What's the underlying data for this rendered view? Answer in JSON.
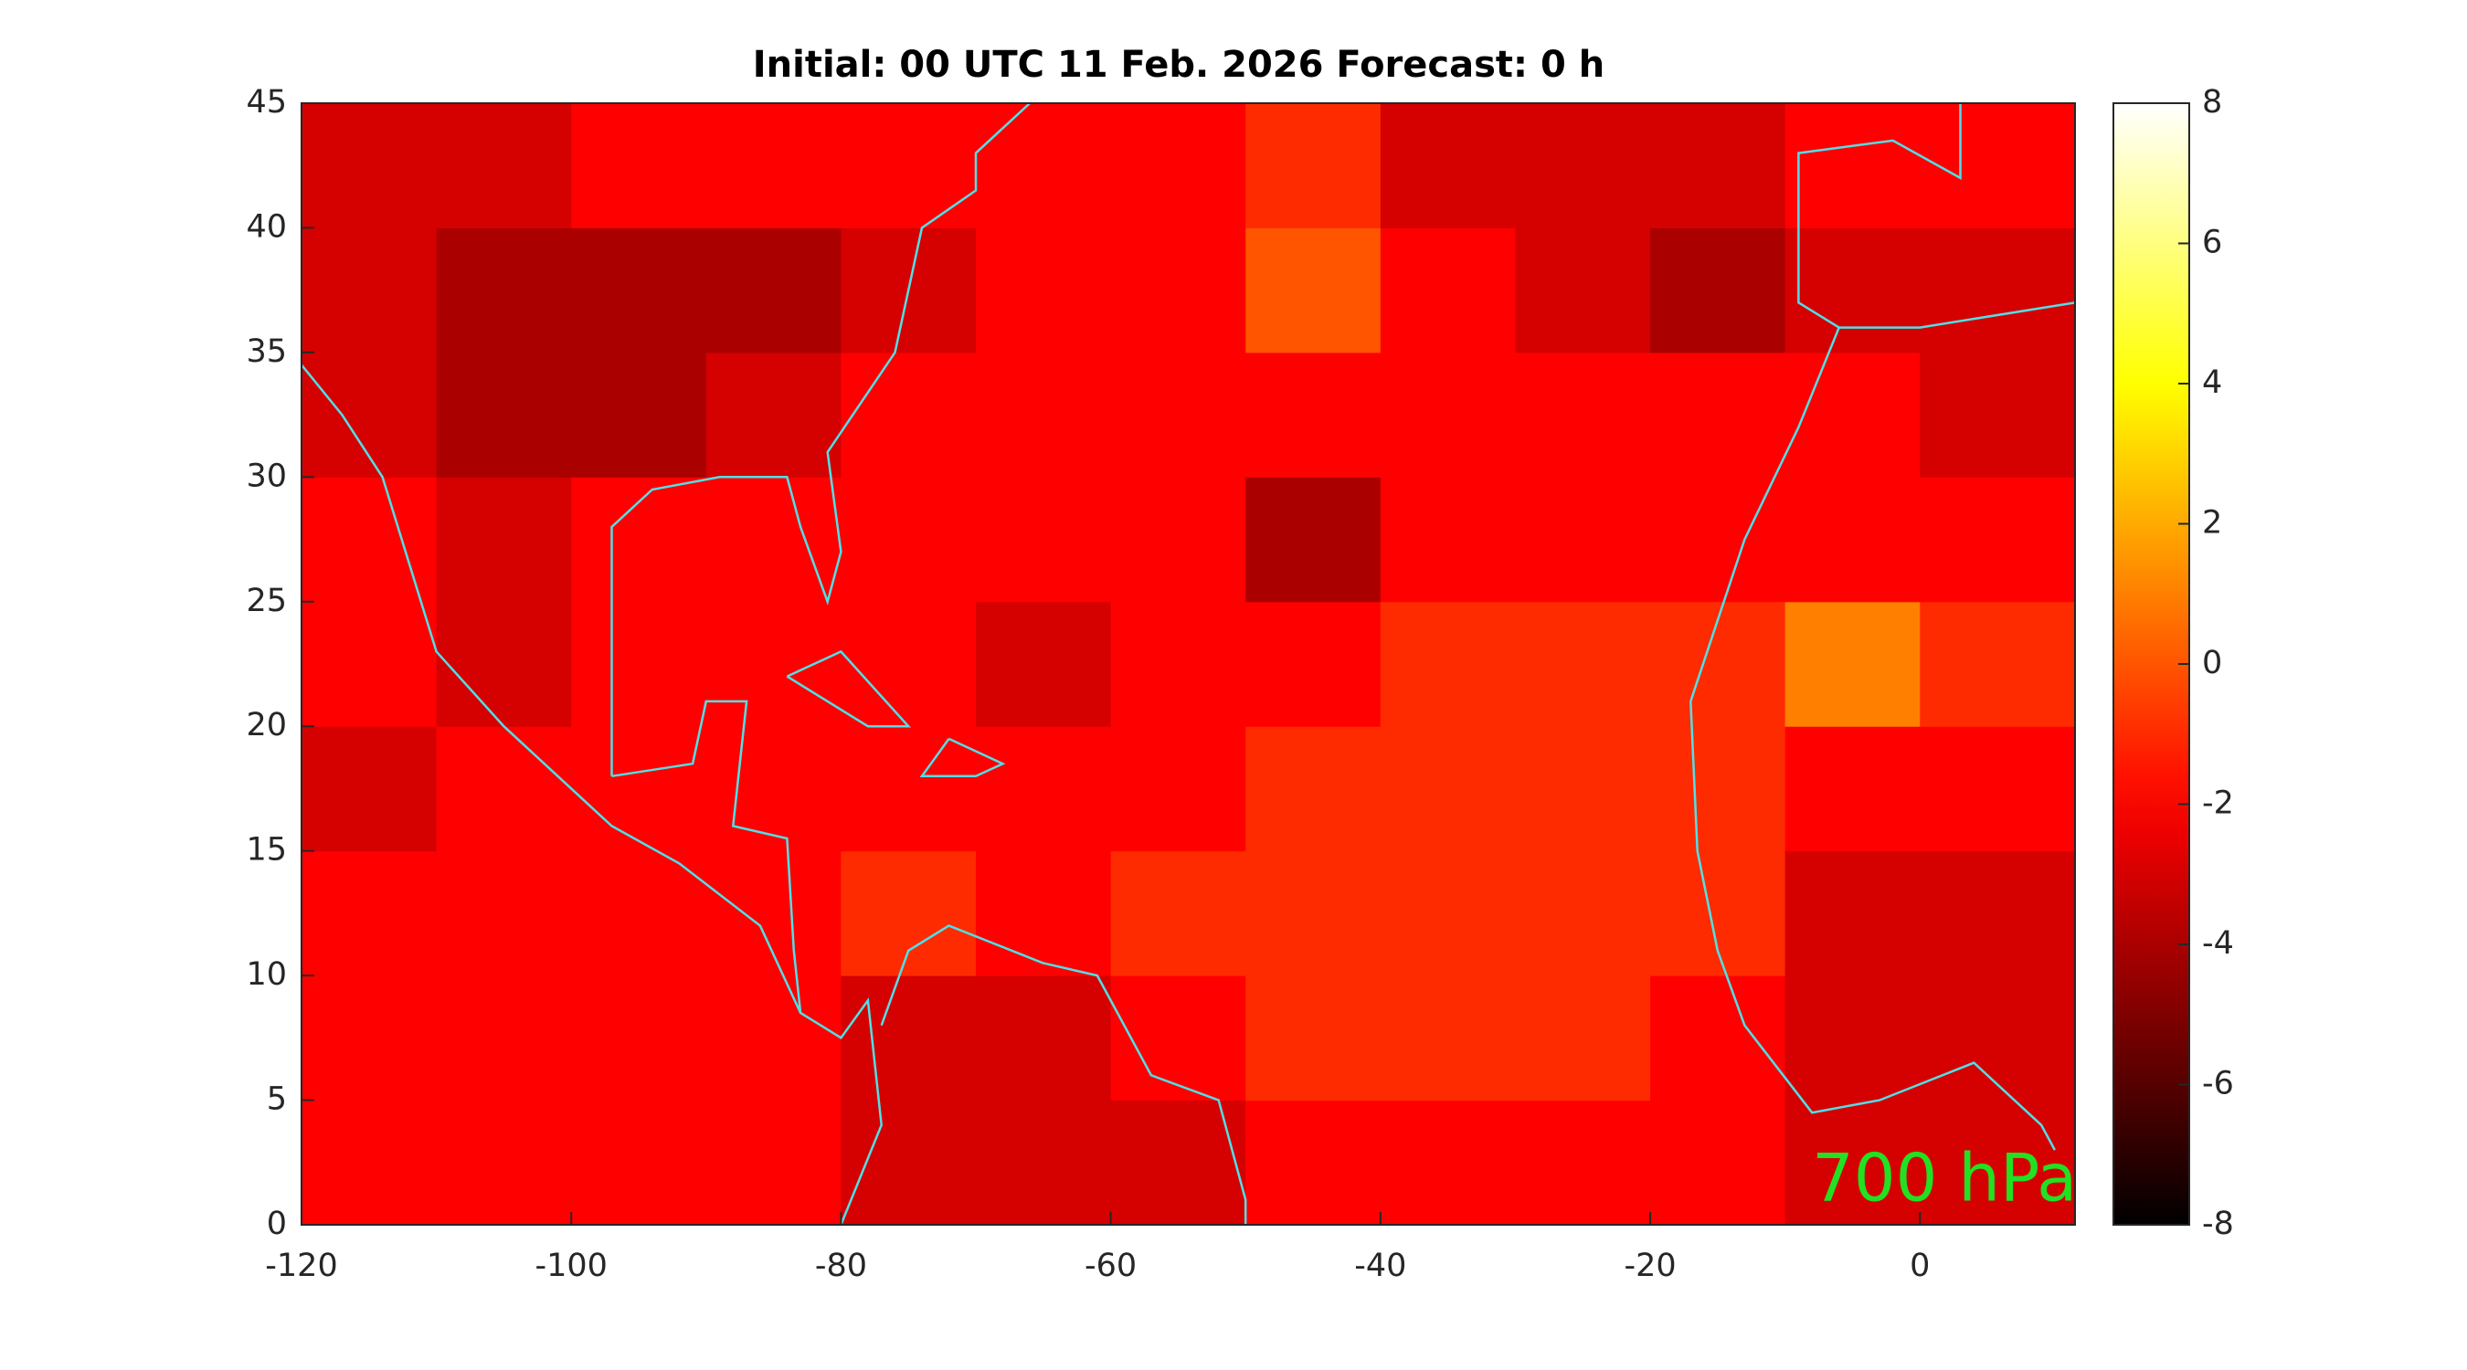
{
  "chart_data": {
    "type": "heatmap",
    "title": "Initial: 00 UTC 11 Feb. 2026 Forecast: 0 h",
    "annotation": "700 hPa",
    "xlim": [
      -120,
      11.5
    ],
    "ylim": [
      0,
      45
    ],
    "xticks": [
      -120,
      -100,
      -80,
      -60,
      -40,
      -20,
      0
    ],
    "yticks": [
      0,
      5,
      10,
      15,
      20,
      25,
      30,
      35,
      40,
      45
    ],
    "clim": [
      -8,
      8
    ],
    "cticks": [
      -8,
      -6,
      -4,
      -2,
      0,
      2,
      4,
      6,
      8
    ],
    "colormap": "hot",
    "coast_color": "#4fe0e8",
    "x": [
      -115,
      -105,
      -95,
      -85,
      -75,
      -65,
      -55,
      -45,
      -35,
      -25,
      -15,
      -5,
      5
    ],
    "y": [
      2.5,
      7.5,
      12.5,
      17.5,
      22.5,
      27.5,
      32.5,
      37.5,
      42.5
    ],
    "values": [
      [
        -2,
        -2,
        -2,
        -2,
        -3,
        -3,
        -3,
        -2,
        -2,
        -2,
        -2,
        -3,
        -3
      ],
      [
        -2,
        -2,
        -2,
        -2,
        -3,
        -3,
        -2,
        -1,
        -1,
        -1,
        -2,
        -3,
        -3
      ],
      [
        -2,
        -2,
        -2,
        -2,
        -1,
        -2,
        -1,
        -1,
        -1,
        -1,
        -1,
        -3,
        -3
      ],
      [
        -3,
        -2,
        -2,
        -2,
        -2,
        -2,
        -2,
        -1,
        -1,
        -1,
        -1,
        -2,
        -2
      ],
      [
        -2,
        -3,
        -2,
        -2,
        -2,
        -3,
        -2,
        -2,
        -1,
        -1,
        -1,
        1,
        -1
      ],
      [
        -2,
        -3,
        -2,
        -2,
        -2,
        -2,
        -2,
        -4,
        -2,
        -2,
        -2,
        -2,
        -2
      ],
      [
        -3,
        -4,
        -4,
        -3,
        -2,
        -2,
        -2,
        -2,
        -2,
        -2,
        -2,
        -2,
        -3
      ],
      [
        -3,
        -4,
        -4,
        -4,
        -3,
        -2,
        -2,
        0,
        -2,
        -3,
        -4,
        -3,
        -3
      ],
      [
        -3,
        -3,
        -2,
        -2,
        -2,
        -2,
        -2,
        -1,
        -3,
        -3,
        -3,
        -2,
        -2
      ]
    ]
  }
}
